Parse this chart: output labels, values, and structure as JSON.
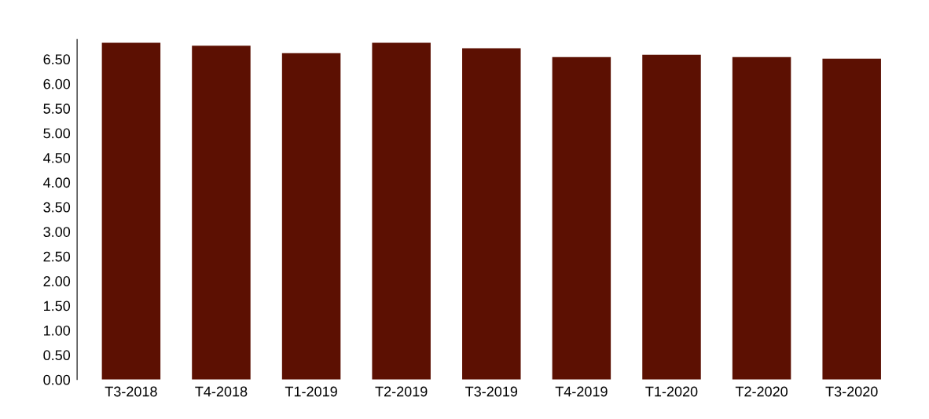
{
  "chart_data": {
    "type": "bar",
    "categories": [
      "T3-2018",
      "T4-2018",
      "T1-2019",
      "T2-2019",
      "T3-2019",
      "T4-2019",
      "T1-2020",
      "T2-2020",
      "T3-2020"
    ],
    "values": [
      6.83,
      6.77,
      6.62,
      6.83,
      6.72,
      6.54,
      6.59,
      6.54,
      6.51
    ],
    "color": "#5c1002",
    "ylim": [
      0,
      6.9
    ],
    "yticks": [
      {
        "value": 0,
        "label": "0.00"
      },
      {
        "value": 0.5,
        "label": "0.50"
      },
      {
        "value": 1,
        "label": "1.00"
      },
      {
        "value": 1.5,
        "label": "1.50"
      },
      {
        "value": 2,
        "label": "2.00"
      },
      {
        "value": 2.5,
        "label": "2.50"
      },
      {
        "value": 3,
        "label": "3.00"
      },
      {
        "value": 3.5,
        "label": "3.50"
      },
      {
        "value": 4,
        "label": "4.00"
      },
      {
        "value": 4.5,
        "label": "4.50"
      },
      {
        "value": 5,
        "label": "5.00"
      },
      {
        "value": 5.5,
        "label": "5.50"
      },
      {
        "value": 6,
        "label": "6.00"
      },
      {
        "value": 6.5,
        "label": "6.50"
      }
    ],
    "grid": false
  }
}
